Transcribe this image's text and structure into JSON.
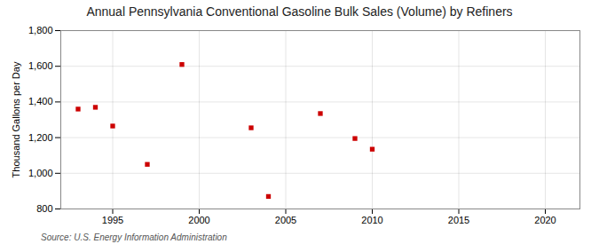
{
  "chart_data": {
    "type": "scatter",
    "title": "Annual Pennsylvania Conventional Gasoline Bulk Sales (Volume) by Refiners",
    "ylabel": "Thousand Gallons per Day",
    "source": "Source: U.S. Energy Information Administration",
    "x": [
      1993,
      1994,
      1995,
      1997,
      1999,
      2003,
      2004,
      2007,
      2009,
      2010
    ],
    "values": [
      1360,
      1370,
      1265,
      1050,
      1610,
      1255,
      870,
      1335,
      1195,
      1135
    ],
    "color": "#cc0000",
    "marker": "square",
    "xlim": [
      1992,
      2022
    ],
    "ylim": [
      800,
      1800
    ],
    "xticks": [
      1995,
      2000,
      2005,
      2010,
      2015,
      2020
    ],
    "yticks": [
      800,
      {
        "value": 1000,
        "label": "1,000"
      },
      {
        "value": 1200,
        "label": "1,200"
      },
      {
        "value": 1400,
        "label": "1,400"
      },
      {
        "value": 1600,
        "label": "1,600"
      },
      {
        "value": 1800,
        "label": "1,800"
      }
    ],
    "grid": true
  }
}
